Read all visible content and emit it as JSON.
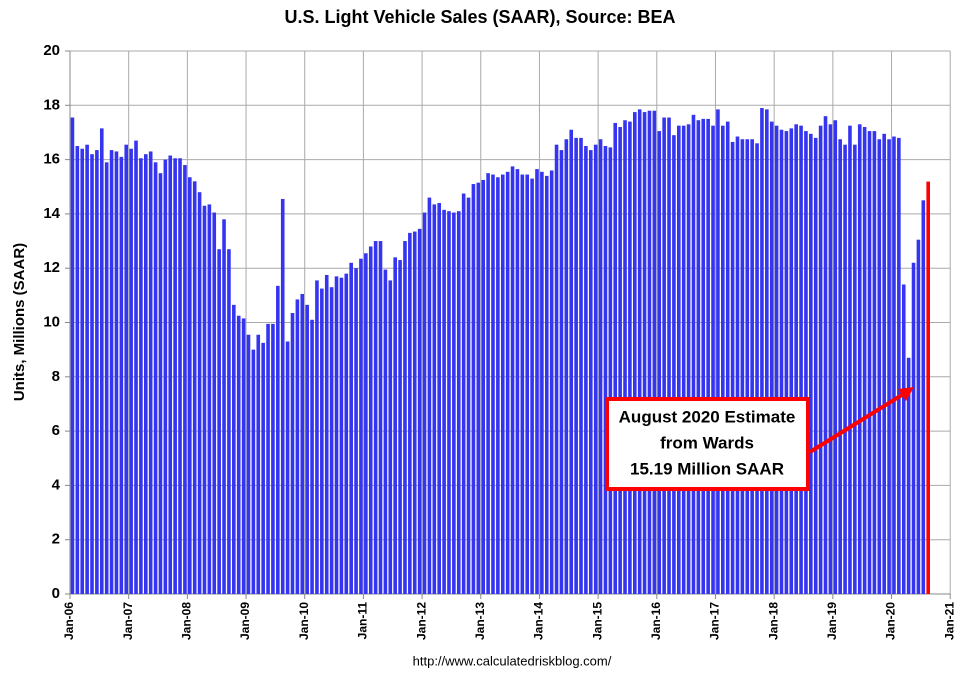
{
  "chart_data": {
    "type": "bar",
    "title": "U.S. Light Vehicle Sales (SAAR), Source: BEA",
    "y_label": "Units, Millions (SAAR)",
    "source": "http://www.calculatedriskblog.com/",
    "annotation": [
      "August 2020 Estimate",
      "from Wards",
      "15.19 Million SAAR"
    ],
    "annotation_color": "#ff0000",
    "grid": true,
    "ylim": [
      0,
      20
    ],
    "yticks": [
      0,
      2,
      4,
      6,
      8,
      10,
      12,
      14,
      16,
      18,
      20
    ],
    "categories": [
      "Jan-06",
      null,
      null,
      null,
      null,
      null,
      null,
      null,
      null,
      null,
      null,
      null,
      "Jan-07",
      null,
      null,
      null,
      null,
      null,
      null,
      null,
      null,
      null,
      null,
      null,
      "Jan-08",
      null,
      null,
      null,
      null,
      null,
      null,
      null,
      null,
      null,
      null,
      null,
      "Jan-09",
      null,
      null,
      null,
      null,
      null,
      null,
      null,
      null,
      null,
      null,
      null,
      "Jan-10",
      null,
      null,
      null,
      null,
      null,
      null,
      null,
      null,
      null,
      null,
      null,
      "Jan-11",
      null,
      null,
      null,
      null,
      null,
      null,
      null,
      null,
      null,
      null,
      null,
      "Jan-12",
      null,
      null,
      null,
      null,
      null,
      null,
      null,
      null,
      null,
      null,
      null,
      "Jan-13",
      null,
      null,
      null,
      null,
      null,
      null,
      null,
      null,
      null,
      null,
      null,
      "Jan-14",
      null,
      null,
      null,
      null,
      null,
      null,
      null,
      null,
      null,
      null,
      null,
      "Jan-15",
      null,
      null,
      null,
      null,
      null,
      null,
      null,
      null,
      null,
      null,
      null,
      "Jan-16",
      null,
      null,
      null,
      null,
      null,
      null,
      null,
      null,
      null,
      null,
      null,
      "Jan-17",
      null,
      null,
      null,
      null,
      null,
      null,
      null,
      null,
      null,
      null,
      null,
      "Jan-18",
      null,
      null,
      null,
      null,
      null,
      null,
      null,
      null,
      null,
      null,
      null,
      "Jan-19",
      null,
      null,
      null,
      null,
      null,
      null,
      null,
      null,
      null,
      null,
      null,
      "Jan-20",
      null,
      null,
      null,
      null,
      null,
      null,
      null,
      null,
      null,
      null,
      null,
      "Jan-21"
    ],
    "series": [
      {
        "color": "#3535f0",
        "values": [
          17.55,
          16.5,
          16.4,
          16.55,
          16.2,
          16.35,
          17.15,
          15.9,
          16.35,
          16.3,
          16.1,
          16.55,
          16.4,
          16.7,
          16.05,
          16.2,
          16.3,
          15.9,
          15.5,
          16.0,
          16.15,
          16.05,
          16.05,
          15.8,
          15.35,
          15.2,
          14.8,
          14.3,
          14.35,
          14.05,
          12.7,
          13.8,
          12.7,
          10.65,
          10.25,
          10.15,
          9.55,
          9.0,
          9.55,
          9.25,
          9.95,
          9.95,
          11.35,
          14.55,
          9.3,
          10.35,
          10.85,
          11.05,
          10.65,
          10.1,
          11.55,
          11.25,
          11.75,
          11.3,
          11.7,
          11.65,
          11.8,
          12.2,
          12.0,
          12.35,
          12.55,
          12.8,
          13.0,
          13.0,
          11.95,
          11.55,
          12.4,
          12.3,
          13.0,
          13.3,
          13.35,
          13.45,
          14.05,
          14.6,
          14.35,
          14.4,
          14.15,
          14.1,
          14.05,
          14.1,
          14.75,
          14.6,
          15.1,
          15.15,
          15.25,
          15.5,
          15.45,
          15.35,
          15.45,
          15.55,
          15.75,
          15.65,
          15.45,
          15.45,
          15.3,
          15.65,
          15.55,
          15.4,
          15.6,
          16.55,
          16.35,
          16.75,
          17.1,
          16.8,
          16.8,
          16.5,
          16.35,
          16.55,
          16.75,
          16.5,
          16.45,
          17.35,
          17.2,
          17.45,
          17.4,
          17.75,
          17.85,
          17.75,
          17.8,
          17.8,
          17.05,
          17.55,
          17.55,
          16.9,
          17.25,
          17.25,
          17.3,
          17.65,
          17.45,
          17.5,
          17.5,
          17.25,
          17.85,
          17.25,
          17.4,
          16.65,
          16.85,
          16.75,
          16.75,
          16.75,
          16.6,
          17.9,
          17.85,
          17.4,
          17.25,
          17.1,
          17.05,
          17.15,
          17.3,
          17.25,
          17.05,
          16.95,
          16.8,
          17.25,
          17.6,
          17.3,
          17.45,
          16.75,
          16.55,
          17.25,
          16.55,
          17.3,
          17.2,
          17.05,
          17.05,
          16.75,
          16.95,
          16.75,
          16.85,
          16.8,
          11.4,
          8.7,
          12.2,
          13.05,
          14.5,
          null,
          null,
          null,
          null,
          null,
          null
        ]
      },
      {
        "color": "#ff0000",
        "values": [
          null,
          null,
          null,
          null,
          null,
          null,
          null,
          null,
          null,
          null,
          null,
          null,
          null,
          null,
          null,
          null,
          null,
          null,
          null,
          null,
          null,
          null,
          null,
          null,
          null,
          null,
          null,
          null,
          null,
          null,
          null,
          null,
          null,
          null,
          null,
          null,
          null,
          null,
          null,
          null,
          null,
          null,
          null,
          null,
          null,
          null,
          null,
          null,
          null,
          null,
          null,
          null,
          null,
          null,
          null,
          null,
          null,
          null,
          null,
          null,
          null,
          null,
          null,
          null,
          null,
          null,
          null,
          null,
          null,
          null,
          null,
          null,
          null,
          null,
          null,
          null,
          null,
          null,
          null,
          null,
          null,
          null,
          null,
          null,
          null,
          null,
          null,
          null,
          null,
          null,
          null,
          null,
          null,
          null,
          null,
          null,
          null,
          null,
          null,
          null,
          null,
          null,
          null,
          null,
          null,
          null,
          null,
          null,
          null,
          null,
          null,
          null,
          null,
          null,
          null,
          null,
          null,
          null,
          null,
          null,
          null,
          null,
          null,
          null,
          null,
          null,
          null,
          null,
          null,
          null,
          null,
          null,
          null,
          null,
          null,
          null,
          null,
          null,
          null,
          null,
          null,
          null,
          null,
          null,
          null,
          null,
          null,
          null,
          null,
          null,
          null,
          null,
          null,
          null,
          null,
          null,
          null,
          null,
          null,
          null,
          null,
          null,
          null,
          null,
          null,
          null,
          null,
          null,
          null,
          null,
          null,
          null,
          null,
          null,
          null,
          15.19,
          null,
          null,
          null,
          null,
          null
        ]
      }
    ]
  }
}
